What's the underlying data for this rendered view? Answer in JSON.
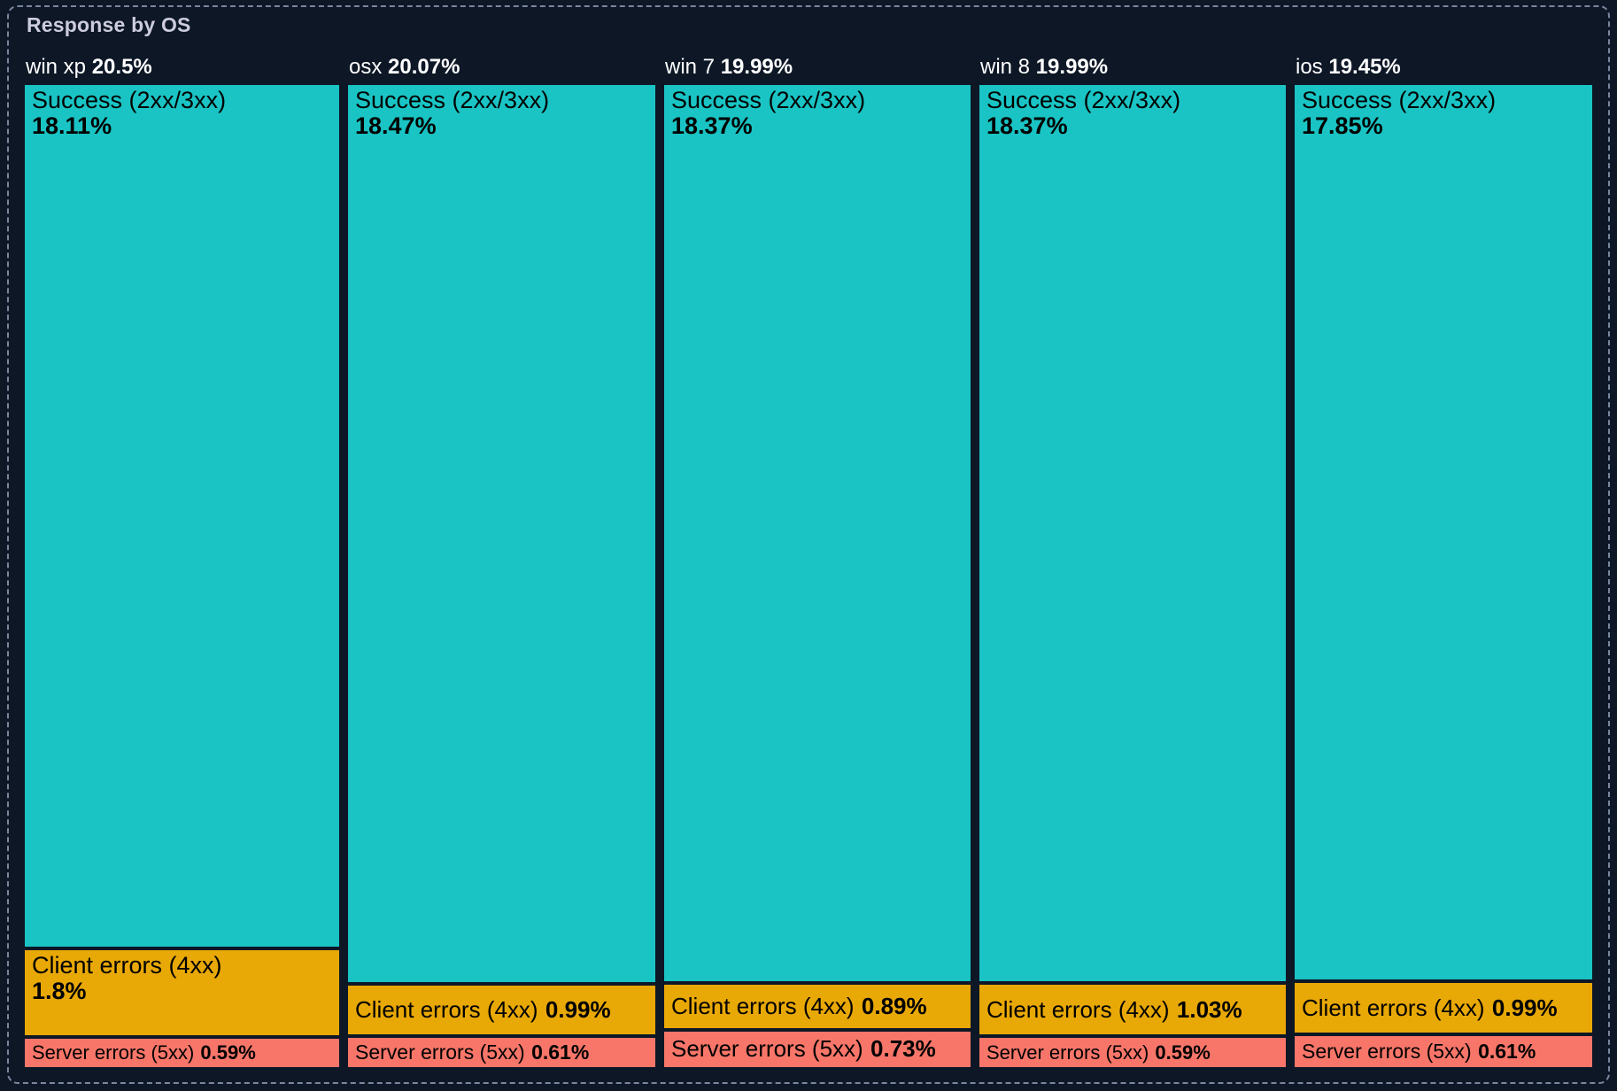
{
  "panel": {
    "title": "Response by OS"
  },
  "colors": {
    "background": "#0d1726",
    "border": "#8d9cb5",
    "title_text": "#ccccdc",
    "header_text": "#ffffff",
    "tile_text": "#000000",
    "success": "#1ac4c4",
    "client": "#e8a806",
    "server": "#f77669"
  },
  "chart_data": {
    "type": "treemap",
    "title": "Response by OS",
    "legend": "none",
    "layout": "slice-dice mosaic; column widths proportional to OS share, segment heights proportional to response share",
    "columns": [
      {
        "name": "win xp",
        "share_label": "20.5%",
        "value": 20.5,
        "segments": [
          {
            "kind": "success",
            "label": "Success (2xx/3xx)",
            "pct": "18.11%",
            "value": 18.11
          },
          {
            "kind": "client",
            "label": "Client errors (4xx)",
            "pct": "1.8%",
            "value": 1.8
          },
          {
            "kind": "server",
            "label": "Server errors (5xx)",
            "pct": "0.59%",
            "value": 0.59
          }
        ]
      },
      {
        "name": "osx",
        "share_label": "20.07%",
        "value": 20.07,
        "segments": [
          {
            "kind": "success",
            "label": "Success (2xx/3xx)",
            "pct": "18.47%",
            "value": 18.47
          },
          {
            "kind": "client",
            "label": "Client errors (4xx)",
            "pct": "0.99%",
            "value": 0.99
          },
          {
            "kind": "server",
            "label": "Server errors (5xx)",
            "pct": "0.61%",
            "value": 0.61
          }
        ]
      },
      {
        "name": "win 7",
        "share_label": "19.99%",
        "value": 19.99,
        "segments": [
          {
            "kind": "success",
            "label": "Success (2xx/3xx)",
            "pct": "18.37%",
            "value": 18.37
          },
          {
            "kind": "client",
            "label": "Client errors (4xx)",
            "pct": "0.89%",
            "value": 0.89
          },
          {
            "kind": "server",
            "label": "Server errors (5xx)",
            "pct": "0.73%",
            "value": 0.73
          }
        ]
      },
      {
        "name": "win 8",
        "share_label": "19.99%",
        "value": 19.99,
        "segments": [
          {
            "kind": "success",
            "label": "Success (2xx/3xx)",
            "pct": "18.37%",
            "value": 18.37
          },
          {
            "kind": "client",
            "label": "Client errors (4xx)",
            "pct": "1.03%",
            "value": 1.03
          },
          {
            "kind": "server",
            "label": "Server errors (5xx)",
            "pct": "0.59%",
            "value": 0.59
          }
        ]
      },
      {
        "name": "ios",
        "share_label": "19.45%",
        "value": 19.45,
        "segments": [
          {
            "kind": "success",
            "label": "Success (2xx/3xx)",
            "pct": "17.85%",
            "value": 17.85
          },
          {
            "kind": "client",
            "label": "Client errors (4xx)",
            "pct": "0.99%",
            "value": 0.99
          },
          {
            "kind": "server",
            "label": "Server errors (5xx)",
            "pct": "0.61%",
            "value": 0.61
          }
        ]
      }
    ]
  }
}
